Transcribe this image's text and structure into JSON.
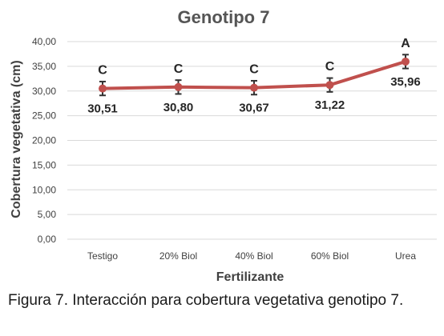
{
  "chart_data": {
    "type": "line",
    "title": "Genotipo 7",
    "xlabel": "Fertilizante",
    "ylabel": "Cobertura vegetativa (cm)",
    "categories": [
      "Testigo",
      "20% Biol",
      "40% Biol",
      "60% Biol",
      "Urea"
    ],
    "series": [
      {
        "values": [
          30.51,
          30.8,
          30.67,
          31.22,
          35.96
        ],
        "value_labels": [
          "30,51",
          "30,80",
          "30,67",
          "31,22",
          "35,96"
        ],
        "significance_letters": [
          "C",
          "C",
          "C",
          "C",
          "A"
        ],
        "error_bars": [
          1.4,
          1.4,
          1.4,
          1.4,
          1.4
        ]
      }
    ],
    "ylim": [
      0,
      40
    ],
    "yticks": [
      0,
      5,
      10,
      15,
      20,
      25,
      30,
      35,
      40
    ],
    "ytick_labels": [
      "0,00",
      "5,00",
      "10,00",
      "15,00",
      "20,00",
      "25,00",
      "30,00",
      "35,00",
      "40,00"
    ],
    "grid": true,
    "line_color": "#c0504d",
    "grid_color": "#d9d9d9"
  },
  "caption": "Figura 7. Interacción para cobertura vegetativa genotipo 7."
}
